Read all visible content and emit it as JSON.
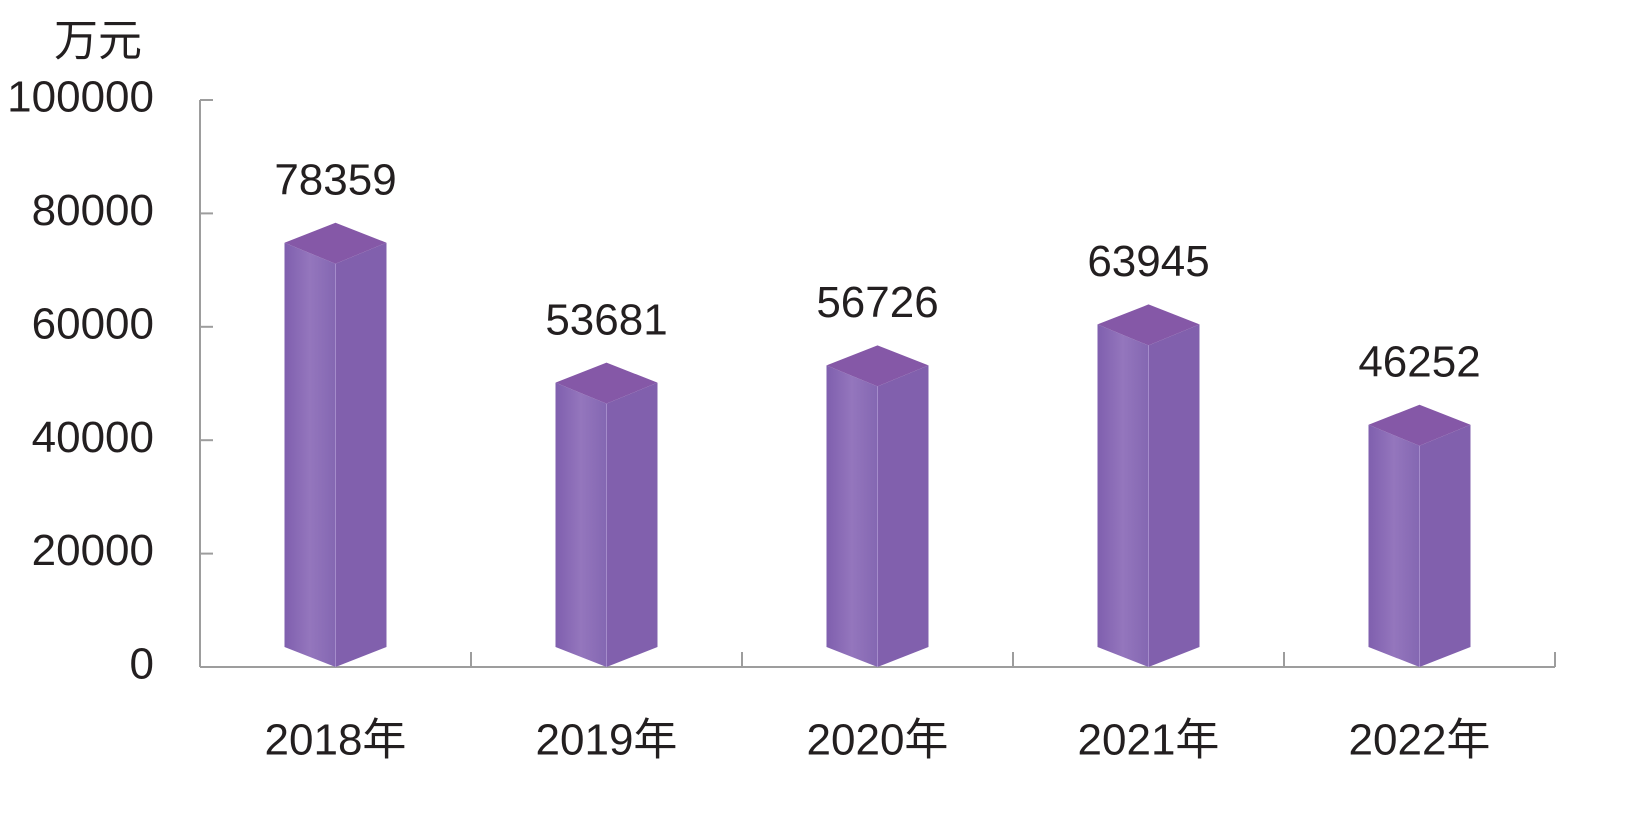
{
  "chart_data": {
    "type": "bar3d",
    "y_label": "万元",
    "categories": [
      "2018年",
      "2019年",
      "2020年",
      "2021年",
      "2022年"
    ],
    "values": [
      78359,
      53681,
      56726,
      63945,
      46252
    ],
    "color": "#8160ad",
    "ylim": [
      0,
      100000
    ],
    "yticks": [
      0,
      20000,
      40000,
      60000,
      80000,
      100000
    ],
    "grid": false
  }
}
